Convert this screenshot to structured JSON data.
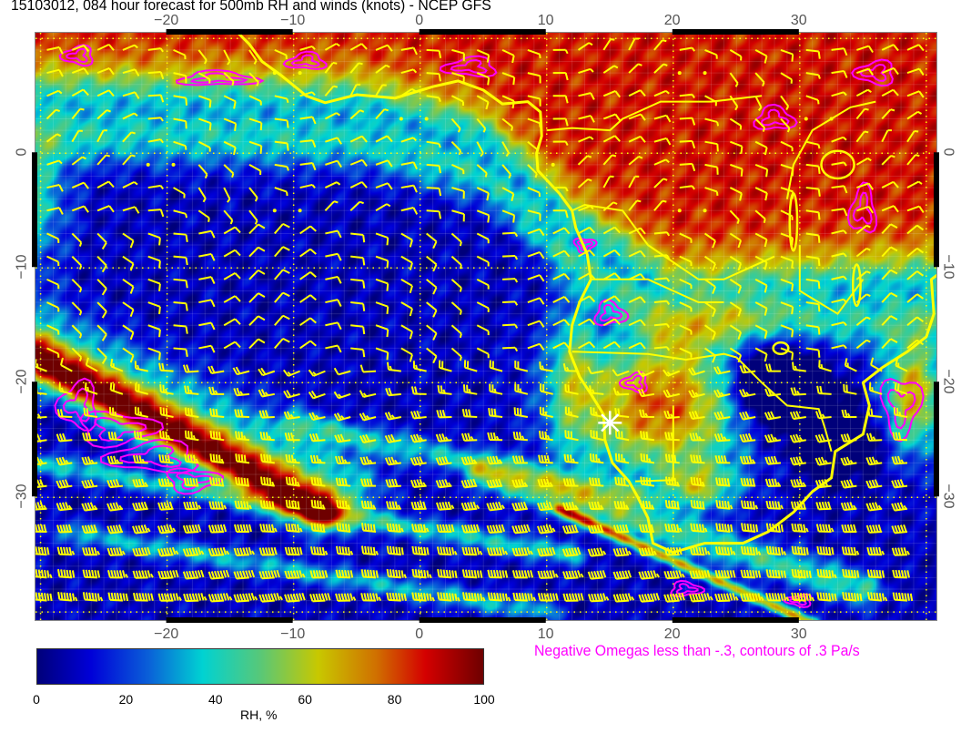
{
  "title": "15103012, 084 hour forecast for 500mb RH and winds (knots) - NCEP GFS",
  "map": {
    "lon_range": [
      -30.4,
      40.8
    ],
    "lat_range": [
      -40.7,
      10.5
    ],
    "lon_ticks": [
      {
        "value": -20,
        "label": "−20"
      },
      {
        "value": -10,
        "label": "−10"
      },
      {
        "value": 0,
        "label": "0"
      },
      {
        "value": 10,
        "label": "10"
      },
      {
        "value": 20,
        "label": "20"
      },
      {
        "value": 30,
        "label": "30"
      }
    ],
    "lat_ticks": [
      {
        "value": 0,
        "label": "0"
      },
      {
        "value": -10,
        "label": "−10"
      },
      {
        "value": -20,
        "label": "−20"
      },
      {
        "value": -30,
        "label": "−30"
      }
    ],
    "gridlines": "dotted every 10 degrees",
    "marker": {
      "lon": 15,
      "lat": -23.5,
      "icon": "asterisk-icon",
      "color": "#ffffff"
    }
  },
  "colorbar": {
    "label": "RH, %",
    "range": [
      0,
      100
    ],
    "ticks": [
      "0",
      "20",
      "40",
      "60",
      "80",
      "100"
    ],
    "stops": [
      {
        "value": 0,
        "color": "#00007a"
      },
      {
        "value": 12,
        "color": "#0000d8"
      },
      {
        "value": 25,
        "color": "#0a60d8"
      },
      {
        "value": 37,
        "color": "#00d2d2"
      },
      {
        "value": 50,
        "color": "#58c878"
      },
      {
        "value": 63,
        "color": "#c8c800"
      },
      {
        "value": 76,
        "color": "#d07000"
      },
      {
        "value": 87,
        "color": "#d40000"
      },
      {
        "value": 100,
        "color": "#6e0000"
      }
    ]
  },
  "omega_note": "Negative Omegas less than -.3, contours of .3 Pa/s",
  "colors": {
    "coastline": "#ffff00",
    "wind_barbs": "#ffff00",
    "omega_contours": "#ff00ff",
    "note": "#ff00ff"
  }
}
